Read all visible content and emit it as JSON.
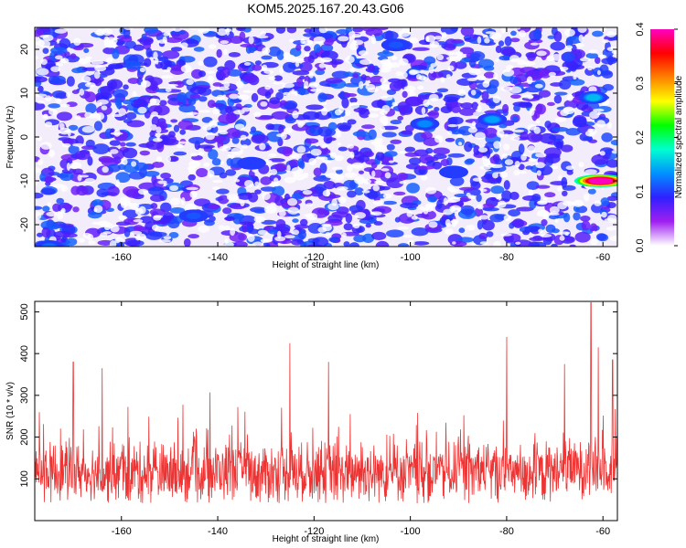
{
  "title": "KOM5.2025.167.20.43.G06",
  "chart_data": [
    {
      "type": "heatmap",
      "xlabel": "Height of straight line (km)",
      "ylabel": "Frequency (Hz)",
      "xlim": [
        -178,
        -57
      ],
      "ylim": [
        -25,
        25
      ],
      "xticks": [
        -160,
        -140,
        -120,
        -100,
        -80,
        -60
      ],
      "yticks": [
        -20,
        -10,
        0,
        10,
        20
      ],
      "colorbar": {
        "label": "Normalized spectral amplitude",
        "range": [
          0.0,
          0.4
        ],
        "ticks": [
          0.0,
          0.1,
          0.2,
          0.3,
          0.4
        ],
        "colors": [
          "#ffffff",
          "#a020f0",
          "#3020ff",
          "#0090ff",
          "#00ffd0",
          "#00ff00",
          "#ffff00",
          "#ff8000",
          "#ff0000",
          "#ff00c0"
        ]
      },
      "background_level": 0.06,
      "peaks": [
        {
          "x": -60.5,
          "y": -10,
          "value": 0.4
        },
        {
          "x": -62,
          "y": 9,
          "value": 0.15
        },
        {
          "x": -97,
          "y": 3,
          "value": 0.13
        },
        {
          "x": -83,
          "y": 4,
          "value": 0.14
        },
        {
          "x": -175,
          "y": -25,
          "value": 0.12
        },
        {
          "x": -145,
          "y": -18,
          "value": 0.11
        },
        {
          "x": -103,
          "y": 21,
          "value": 0.11
        },
        {
          "x": -91,
          "y": -8,
          "value": 0.1
        },
        {
          "x": -133,
          "y": -6,
          "value": 0.1
        }
      ]
    },
    {
      "type": "line",
      "xlabel": "Height of straight line (km)",
      "ylabel": "SNR (10 * v/v)",
      "xlim": [
        -178,
        -57
      ],
      "ylim": [
        0,
        525
      ],
      "xticks": [
        -160,
        -140,
        -120,
        -100,
        -80,
        -60
      ],
      "yticks": [
        100,
        200,
        300,
        400,
        500
      ],
      "series": [
        {
          "color": "#ee3333",
          "baseline": 115,
          "spikes": [
            {
              "x": -170,
              "y": 380
            },
            {
              "x": -164,
              "y": 365
            },
            {
              "x": -125,
              "y": 425
            },
            {
              "x": -117,
              "y": 380
            },
            {
              "x": -80,
              "y": 440
            },
            {
              "x": -68,
              "y": 375
            },
            {
              "x": -62.5,
              "y": 522
            },
            {
              "x": -61,
              "y": 415
            },
            {
              "x": -58,
              "y": 385
            }
          ]
        }
      ]
    }
  ]
}
